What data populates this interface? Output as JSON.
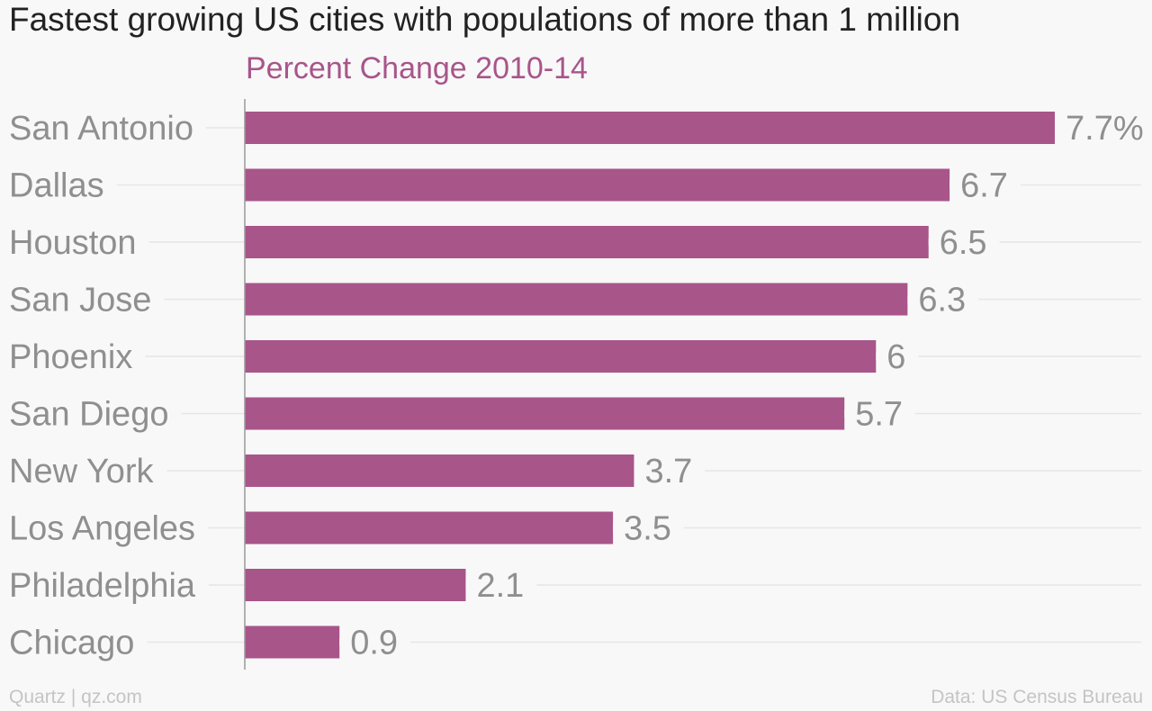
{
  "chart_data": {
    "type": "bar",
    "orientation": "horizontal",
    "title": "Fastest growing US cities with populations of more than 1 million",
    "subtitle": "Percent Change 2010-14",
    "categories": [
      "San Antonio",
      "Dallas",
      "Houston",
      "San Jose",
      "Phoenix",
      "San Diego",
      "New York",
      "Los Angeles",
      "Philadelphia",
      "Chicago"
    ],
    "values": [
      7.7,
      6.7,
      6.5,
      6.3,
      6,
      5.7,
      3.7,
      3.5,
      2.1,
      0.9
    ],
    "value_labels": [
      "7.7%",
      "6.7",
      "6.5",
      "6.3",
      "6",
      "5.7",
      "3.7",
      "3.5",
      "2.1",
      "0.9"
    ],
    "xlim": [
      0,
      7.7
    ],
    "grid": true,
    "bar_color": "#a8558a"
  },
  "footer": {
    "credit": "Quartz | qz.com",
    "source": "Data: US Census Bureau"
  }
}
